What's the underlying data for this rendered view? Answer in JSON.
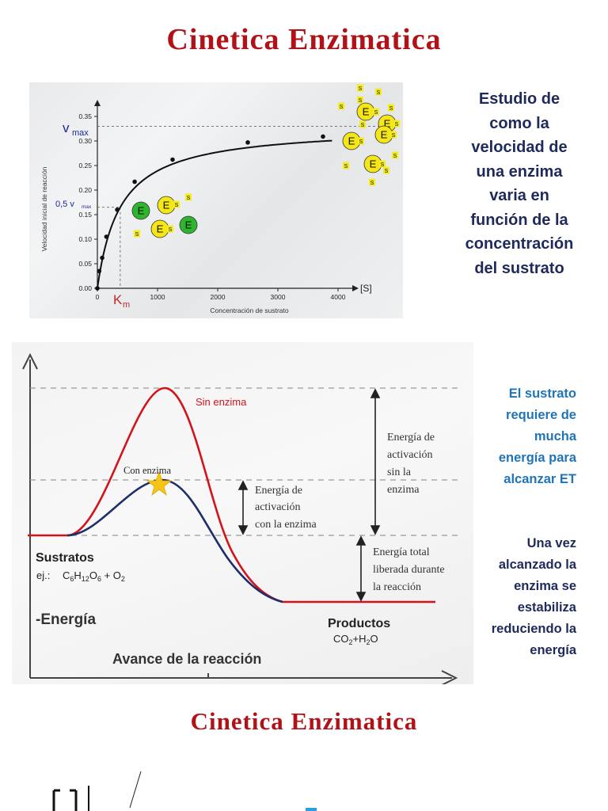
{
  "title": "Cinetica Enzimatica",
  "title_repeat": "Cinetica Enzimatica",
  "description": "Estudio de como la velocidad de una enzima varia en función de la concentración del sustrato",
  "description_lines": [
    "Estudio de",
    "como la",
    "velocidad de",
    "una enzima",
    "varia en",
    "función de la",
    "concentración",
    "del sustrato"
  ],
  "kinetics_chart": {
    "ylabel": "Velocidad inicial de reacción",
    "xlabel": "Concentración de sustrato",
    "x_symbol": "[S]",
    "vmax_label": "v",
    "vmax_sub": "max",
    "half_vmax_label": "0,5 v",
    "half_vmax_sub": "max",
    "km_label": "K",
    "km_sub": "m",
    "enzyme_letter": "E",
    "substrate_letter": "S",
    "y_ticks": [
      "0.00",
      "0.05",
      "0.10",
      "0.15",
      "0.20",
      "0.25",
      "0.30",
      "0.35"
    ],
    "x_ticks": [
      "0",
      "1000",
      "2000",
      "3000",
      "4000"
    ],
    "colors": {
      "curve": "#111111",
      "vmax": "#1a2a9c",
      "km": "#c0282c",
      "free_enzyme": "#2db52d",
      "enzyme": "#f5e617",
      "substrate": "#f4ec1c"
    }
  },
  "chart_data": {
    "type": "line",
    "x": [
      0,
      30,
      80,
      150,
      330,
      620,
      1250,
      2500,
      3750
    ],
    "values": [
      0.0,
      0.035,
      0.062,
      0.105,
      0.16,
      0.217,
      0.262,
      0.297,
      0.309
    ],
    "xlabel": "Concentración de sustrato",
    "ylabel": "Velocidad inicial de reacción",
    "xlim": [
      0,
      4200
    ],
    "ylim": [
      0,
      0.37
    ],
    "vmax": 0.33,
    "km": 380
  },
  "energy_chart": {
    "no_enzyme_label": "Sin enzima",
    "with_enzyme_label": "Con enzima",
    "activation_no_enzyme": [
      "Energía de",
      "activación",
      "sin la",
      "enzima"
    ],
    "activation_with_enzyme": [
      "Energía de",
      "activación",
      "con la enzima"
    ],
    "total_energy": [
      "Energía total",
      "liberada durante",
      "la reacción"
    ],
    "substrates_label": "Sustratos",
    "substrates_example_prefix": "ej.:",
    "substrates_formula": "C6H12O6 + O2",
    "products_label": "Productos",
    "products_formula": "CO2+H2O",
    "energy_label": "Energía",
    "progress_label": "Avance de la reacción",
    "colors": {
      "no_enzyme": "#d4121c",
      "with_enzyme": "#1d2f6b",
      "star": "#f5c416"
    }
  },
  "note_blue": [
    "El sustrato",
    "requiere de",
    "mucha",
    "energía para",
    "alcanzar ET"
  ],
  "note_dark": [
    "Una vez",
    "alcanzado la",
    "enzima se",
    "estabiliza",
    "reduciendo la",
    "energía"
  ]
}
